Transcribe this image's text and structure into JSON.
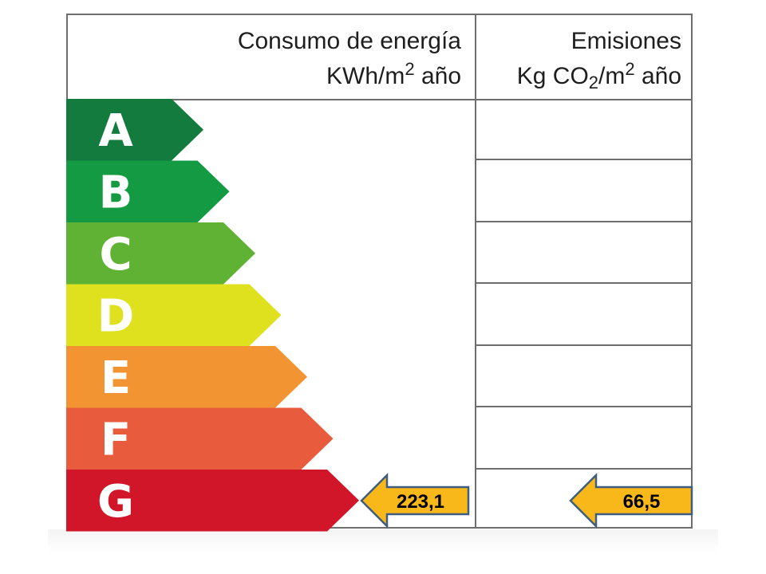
{
  "header": {
    "energy": {
      "line1": "Consumo de energía",
      "line2_base": "KWh/m",
      "line2_sup": "2",
      "line2_tail": " año"
    },
    "emissions": {
      "line1": "Emisiones",
      "line2_a": "Kg CO",
      "line2_sub": "2",
      "line2_b": "/m",
      "line2_sup": "2",
      "line2_tail": " año"
    }
  },
  "classes": [
    {
      "letter": "A",
      "color": "#137b3e"
    },
    {
      "letter": "B",
      "color": "#139a42"
    },
    {
      "letter": "C",
      "color": "#5fb233"
    },
    {
      "letter": "D",
      "color": "#dfe01e"
    },
    {
      "letter": "E",
      "color": "#f39432"
    },
    {
      "letter": "F",
      "color": "#e85b3d"
    },
    {
      "letter": "G",
      "color": "#d01628"
    }
  ],
  "rating": {
    "class": "G",
    "energy_value": "223,1",
    "emissions_value": "66,5",
    "marker_color": "#f8b81a",
    "marker_border": "#3e5d7f"
  }
}
